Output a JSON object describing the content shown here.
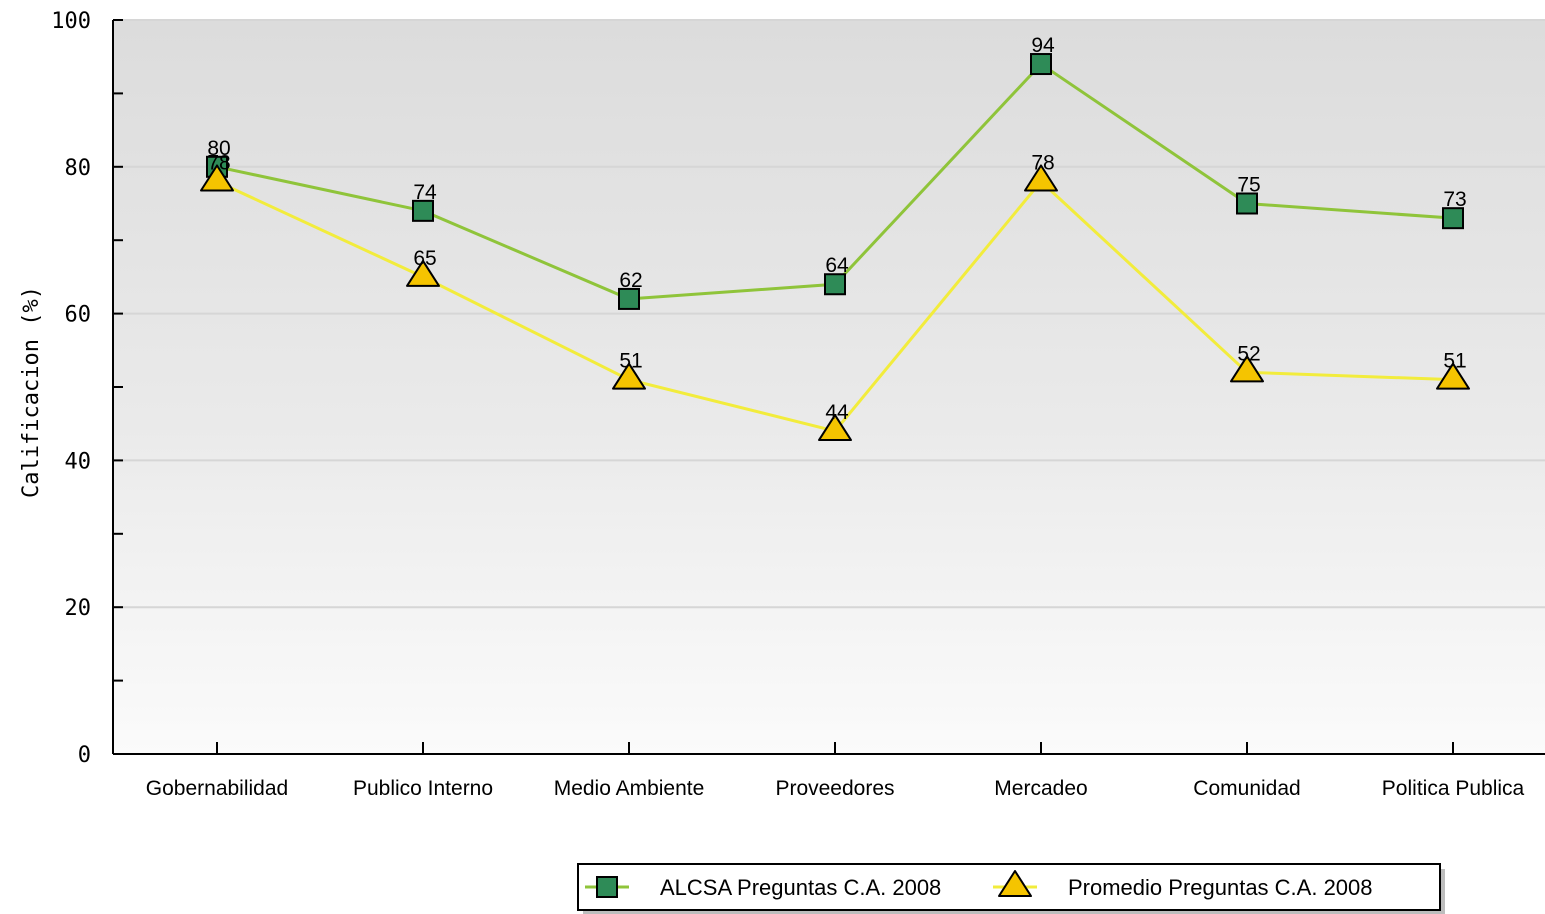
{
  "chart_data": {
    "type": "line",
    "categories": [
      "Gobernabilidad",
      "Publico Interno",
      "Medio Ambiente",
      "Proveedores",
      "Mercadeo",
      "Comunidad",
      "Politica Publica"
    ],
    "series": [
      {
        "name": "ALCSA Preguntas C.A. 2008",
        "values": [
          80,
          74,
          62,
          64,
          94,
          75,
          73
        ],
        "color": "#8fc43a",
        "marker_color": "#2e8b57",
        "marker": "square"
      },
      {
        "name": "Promedio Preguntas C.A. 2008",
        "values": [
          78,
          65,
          51,
          44,
          78,
          52,
          51
        ],
        "color": "#f2ec3c",
        "marker_color": "#f5c400",
        "marker": "triangle"
      }
    ],
    "ylabel": "Calificacion (%)",
    "xlabel": "",
    "ylim": [
      0,
      100
    ],
    "yticks": [
      0,
      20,
      40,
      60,
      80,
      100
    ],
    "grid": true,
    "legend_position": "bottom"
  }
}
